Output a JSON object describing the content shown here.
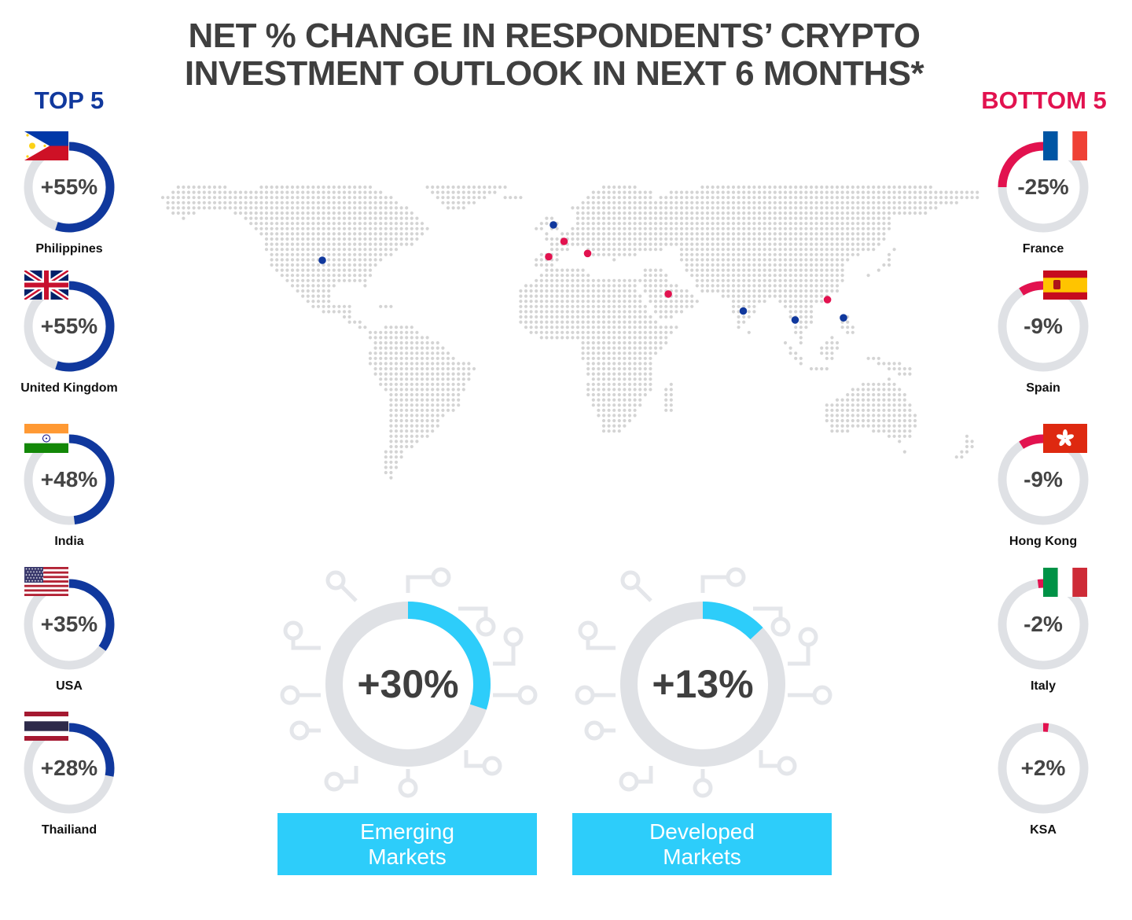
{
  "title": {
    "line1": "NET % CHANGE IN RESPONDENTS’ CRYPTO",
    "line2": "INVESTMENT OUTLOOK IN NEXT 6 MONTHS*"
  },
  "colors": {
    "title": "#3f3f3f",
    "top_accent": "#10389d",
    "bottom_accent": "#e2124f",
    "market_accent": "#2dcdfa",
    "ring_track": "#dfe1e5",
    "map_dot": "#d4d4d4"
  },
  "top5": {
    "heading": "TOP 5",
    "items": [
      {
        "country": "Philippines",
        "label": "+55%",
        "value": 55,
        "flag": "philippines-flag"
      },
      {
        "country": "United Kingdom",
        "label": "+55%",
        "value": 55,
        "flag": "uk-flag"
      },
      {
        "country": "India",
        "label": "+48%",
        "value": 48,
        "flag": "india-flag"
      },
      {
        "country": "USA",
        "label": "+35%",
        "value": 35,
        "flag": "usa-flag"
      },
      {
        "country": "Thailiand",
        "label": "+28%",
        "value": 28,
        "flag": "thailand-flag"
      }
    ]
  },
  "bottom5": {
    "heading": "BOTTOM 5",
    "items": [
      {
        "country": "France",
        "label": "-25%",
        "value": -25,
        "flag": "france-flag"
      },
      {
        "country": "Spain",
        "label": "-9%",
        "value": -9,
        "flag": "spain-flag"
      },
      {
        "country": "Hong Kong",
        "label": "-9%",
        "value": -9,
        "flag": "hong-kong-flag"
      },
      {
        "country": "Italy",
        "label": "-2%",
        "value": -2,
        "flag": "italy-flag"
      },
      {
        "country": "KSA",
        "label": "+2%",
        "value": 2,
        "flag": ""
      }
    ]
  },
  "markets": [
    {
      "label_line1": "Emerging",
      "label_line2": "Markets",
      "value_label": "+30%",
      "value": 30
    },
    {
      "label_line1": "Developed",
      "label_line2": "Markets",
      "value_label": "+13%",
      "value": 13
    }
  ],
  "map_markers": [
    {
      "name": "usa-marker",
      "lon": -100,
      "lat": 39,
      "group": "top"
    },
    {
      "name": "uk-marker",
      "lon": -2,
      "lat": 54,
      "group": "top"
    },
    {
      "name": "france-marker",
      "lon": 2.5,
      "lat": 47,
      "group": "bottom"
    },
    {
      "name": "spain-marker",
      "lon": -4,
      "lat": 40.5,
      "group": "bottom"
    },
    {
      "name": "italy-marker",
      "lon": 12.5,
      "lat": 41.9,
      "group": "bottom"
    },
    {
      "name": "ksa-marker",
      "lon": 46.7,
      "lat": 24.7,
      "group": "bottom"
    },
    {
      "name": "india-marker",
      "lon": 78.5,
      "lat": 17.5,
      "group": "top"
    },
    {
      "name": "thailand-marker",
      "lon": 100.5,
      "lat": 13.7,
      "group": "top"
    },
    {
      "name": "hong-kong-marker",
      "lon": 114.2,
      "lat": 22.3,
      "group": "bottom"
    },
    {
      "name": "philippines-marker",
      "lon": 121,
      "lat": 14.6,
      "group": "top"
    }
  ],
  "chart_data": [
    {
      "type": "bar",
      "title": "TOP 5",
      "categories": [
        "Philippines",
        "United Kingdom",
        "India",
        "USA",
        "Thailiand"
      ],
      "values": [
        55,
        55,
        48,
        35,
        28
      ],
      "unit": "%"
    },
    {
      "type": "bar",
      "title": "BOTTOM 5",
      "categories": [
        "France",
        "Spain",
        "Hong Kong",
        "Italy",
        "KSA"
      ],
      "values": [
        -25,
        -9,
        -9,
        -2,
        2
      ],
      "unit": "%"
    },
    {
      "type": "bar",
      "categories": [
        "Emerging Markets",
        "Developed Markets"
      ],
      "values": [
        30,
        13
      ],
      "unit": "%"
    }
  ]
}
